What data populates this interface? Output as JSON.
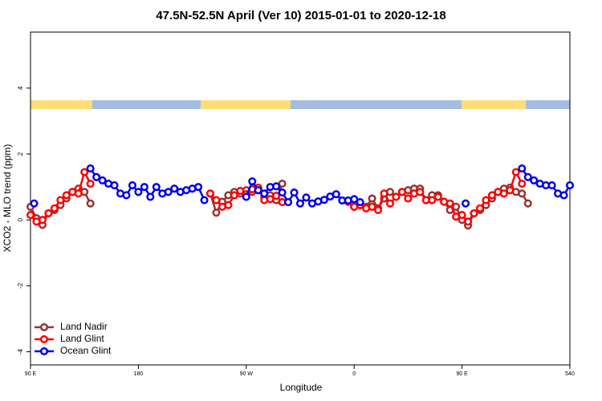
{
  "chart_data": {
    "type": "line",
    "title": "47.5N-52.5N April (Ver 10)   2015-01-01 to 2020-12-18",
    "xlabel": "Longitude",
    "ylabel": "XCO2 - MLO trend (ppm)",
    "xlim": [
      90,
      540
    ],
    "ylim": [
      -4.4,
      5.7
    ],
    "xticks": [
      {
        "value": 90,
        "label": "90 E"
      },
      180,
      {
        "value": 270,
        "label": "90 W"
      },
      {
        "value": 360,
        "label": "0"
      },
      {
        "value": 450,
        "label": "90 E"
      },
      540
    ],
    "yticks": [
      -4,
      -2,
      0,
      2,
      4
    ],
    "legend": "bottom-left",
    "series": [
      {
        "name": "Land Nadir",
        "color": "#993333",
        "x": [
          90,
          95,
          100,
          105,
          110,
          115,
          120,
          125,
          130,
          135,
          140,
          null,
          240,
          245,
          250,
          255,
          260,
          265,
          270,
          275,
          280,
          285,
          290,
          295,
          300,
          null,
          355,
          360,
          365,
          370,
          375,
          380,
          385,
          390,
          395,
          400,
          405,
          410,
          415,
          420,
          425,
          430,
          435,
          440,
          445,
          450,
          455,
          460,
          465,
          470,
          475,
          480,
          485,
          490,
          495,
          500,
          505
        ],
        "values": [
          0.4,
          0.05,
          -0.15,
          0.2,
          0.3,
          0.45,
          0.65,
          0.85,
          0.95,
          0.85,
          0.5,
          null,
          0.8,
          0.22,
          0.55,
          0.75,
          0.85,
          0.8,
          0.9,
          0.85,
          0.95,
          0.7,
          0.75,
          0.6,
          1.1,
          null,
          0.55,
          0.4,
          0.45,
          0.4,
          0.65,
          0.35,
          0.65,
          0.85,
          0.7,
          0.85,
          0.9,
          0.95,
          0.95,
          0.6,
          0.75,
          0.75,
          0.55,
          0.3,
          0.4,
          0.0,
          -0.17,
          0.2,
          0.3,
          0.45,
          0.65,
          0.85,
          0.95,
          0.98,
          0.85,
          0.8,
          0.5
        ]
      },
      {
        "name": "Land Glint",
        "color": "#ff0000",
        "x": [
          90,
          95,
          100,
          105,
          110,
          115,
          120,
          125,
          130,
          135,
          140,
          null,
          240,
          245,
          250,
          255,
          260,
          265,
          270,
          275,
          280,
          285,
          290,
          295,
          300,
          null,
          355,
          360,
          365,
          370,
          375,
          380,
          385,
          390,
          395,
          400,
          405,
          410,
          415,
          420,
          425,
          430,
          435,
          440,
          445,
          450,
          455,
          460,
          465,
          470,
          475,
          480,
          485,
          490,
          495,
          500
        ],
        "values": [
          0.15,
          -0.05,
          0.0,
          0.2,
          0.35,
          0.6,
          0.75,
          0.85,
          0.8,
          1.45,
          1.1,
          null,
          0.8,
          0.6,
          0.4,
          0.45,
          0.75,
          0.88,
          0.78,
          0.93,
          0.98,
          0.6,
          0.63,
          0.73,
          0.54,
          null,
          0.55,
          0.4,
          0.45,
          0.35,
          0.4,
          0.3,
          0.8,
          0.5,
          0.7,
          0.85,
          0.65,
          0.8,
          0.85,
          0.6,
          0.6,
          0.7,
          0.55,
          0.5,
          0.1,
          0.15,
          -0.05,
          0.2,
          0.35,
          0.6,
          0.75,
          0.85,
          0.8,
          0.9,
          1.45,
          1.1
        ]
      },
      {
        "name": "Ocean Glint",
        "color": "#0000ee",
        "x": [
          93,
          null,
          140,
          145,
          150,
          155,
          160,
          165,
          170,
          175,
          180,
          185,
          190,
          195,
          200,
          205,
          210,
          215,
          220,
          225,
          230,
          235,
          null,
          270,
          275,
          280,
          285,
          290,
          295,
          300,
          305,
          310,
          315,
          320,
          325,
          330,
          335,
          340,
          345,
          350,
          355,
          360,
          365,
          null,
          453,
          null,
          500,
          505,
          510,
          515,
          520,
          525,
          530,
          535,
          540
        ],
        "values": [
          0.5,
          null,
          1.56,
          1.3,
          1.2,
          1.1,
          1.05,
          0.8,
          0.75,
          1.05,
          0.85,
          1.0,
          0.7,
          1.0,
          0.8,
          0.85,
          0.95,
          0.85,
          0.9,
          0.95,
          1.0,
          0.6,
          null,
          0.7,
          1.17,
          0.9,
          0.8,
          1.0,
          1.02,
          0.83,
          0.54,
          0.83,
          0.5,
          0.68,
          0.5,
          0.56,
          0.61,
          0.71,
          0.78,
          0.59,
          0.59,
          0.63,
          0.54,
          null,
          0.5,
          null,
          1.56,
          1.3,
          1.2,
          1.1,
          1.05,
          1.05,
          0.8,
          0.75,
          1.05
        ]
      }
    ]
  }
}
